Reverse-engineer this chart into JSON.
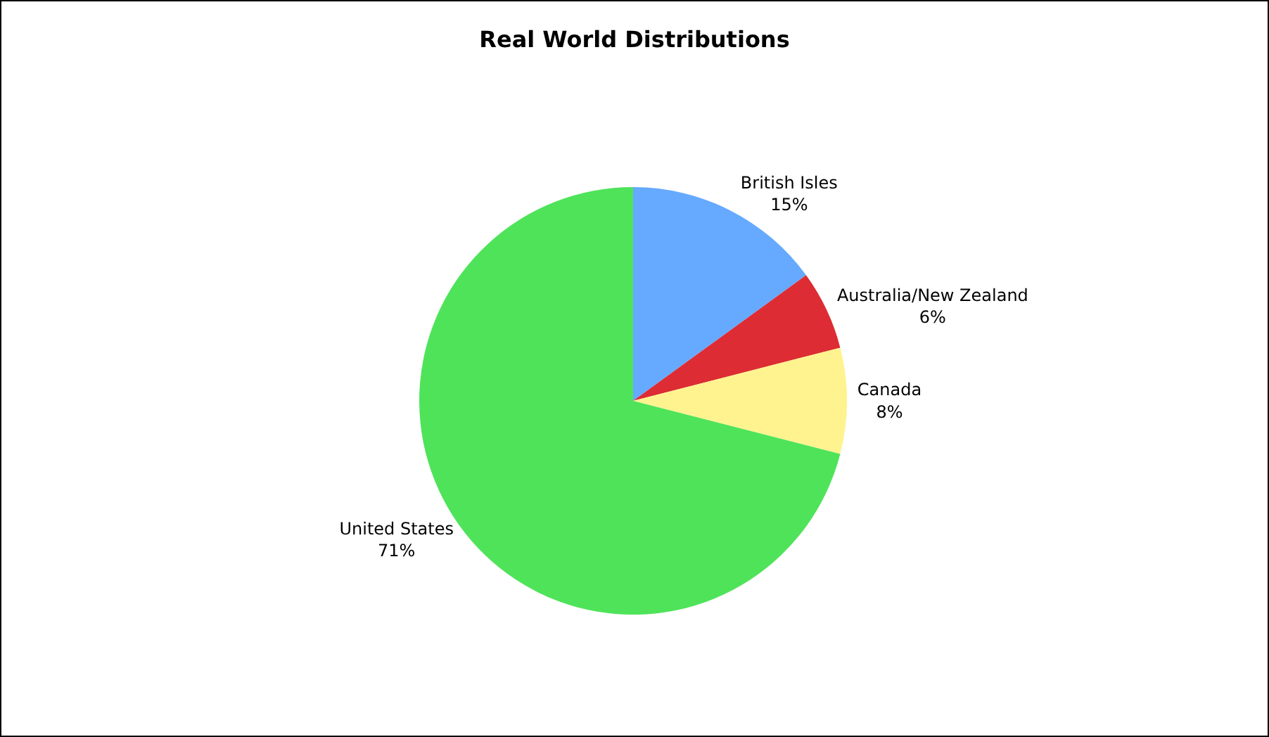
{
  "chart_data": {
    "type": "pie",
    "title": "Real World Distributions",
    "categories": [
      "British Isles",
      "Australia/New Zealand",
      "Canada",
      "United States"
    ],
    "values": [
      15,
      6,
      8,
      71
    ],
    "value_labels": [
      "15%",
      "6%",
      "8%",
      "71%"
    ],
    "colors": [
      "#66aaff",
      "#dd2c33",
      "#fff38f",
      "#4fe35a"
    ],
    "legend": false
  }
}
